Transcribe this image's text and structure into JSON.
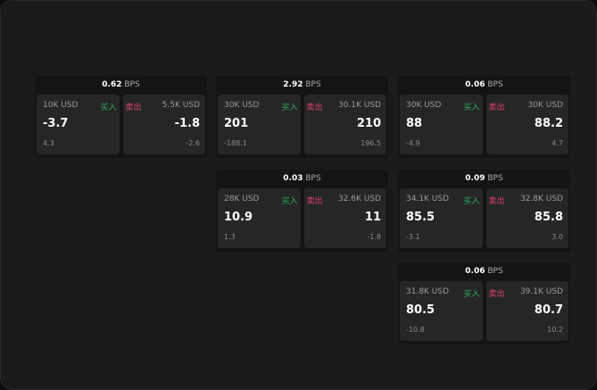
{
  "unit": "BPS",
  "buy_label": "买入",
  "sell_label": "卖出",
  "colors": {
    "buy": "#2fae5c",
    "sell": "#e0436b",
    "background": "#1b1b1b"
  },
  "cards": [
    {
      "spread": "0.62",
      "buy": {
        "size": "10K USD",
        "price": "-3.7",
        "change": "4.3"
      },
      "sell": {
        "size": "5.5K USD",
        "price": "-1.8",
        "change": "-2.6"
      }
    },
    {
      "spread": "2.92",
      "buy": {
        "size": "30K USD",
        "price": "201",
        "change": "-188.1"
      },
      "sell": {
        "size": "30.1K USD",
        "price": "210",
        "change": "196.5"
      }
    },
    {
      "spread": "0.06",
      "buy": {
        "size": "30K USD",
        "price": "88",
        "change": "-4.9"
      },
      "sell": {
        "size": "30K USD",
        "price": "88.2",
        "change": "4.7"
      }
    },
    {
      "spread": "0.03",
      "buy": {
        "size": "28K USD",
        "price": "10.9",
        "change": "1.3"
      },
      "sell": {
        "size": "32.6K USD",
        "price": "11",
        "change": "-1.8"
      }
    },
    {
      "spread": "0.09",
      "buy": {
        "size": "34.1K USD",
        "price": "85.5",
        "change": "-3.1"
      },
      "sell": {
        "size": "32.8K USD",
        "price": "85.8",
        "change": "3.0"
      }
    },
    {
      "spread": "0.06",
      "buy": {
        "size": "31.8K USD",
        "price": "80.5",
        "change": "-10.8"
      },
      "sell": {
        "size": "39.1K USD",
        "price": "80.7",
        "change": "10.2"
      }
    }
  ]
}
